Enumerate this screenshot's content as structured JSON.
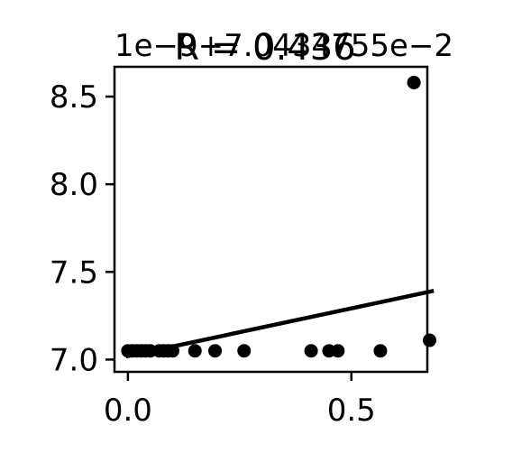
{
  "chart_data": {
    "type": "scatter",
    "title": "R = 0.436",
    "offset_text": "1e−9+7.0434755e−2",
    "xlabel": "",
    "ylabel": "",
    "xlim": [
      -0.03,
      0.67
    ],
    "ylim": [
      6.93,
      8.67
    ],
    "xticks": [
      0.0,
      0.5
    ],
    "xtick_labels": [
      "0.0",
      "0.5"
    ],
    "yticks": [
      7.0,
      7.5,
      8.0,
      8.5
    ],
    "ytick_labels": [
      "7.0",
      "7.5",
      "8.0",
      "8.5"
    ],
    "grid": false,
    "series": [
      {
        "points": [
          {
            "x": 0.0,
            "y": 7.05
          },
          {
            "x": 0.01,
            "y": 7.05
          },
          {
            "x": 0.02,
            "y": 7.05
          },
          {
            "x": 0.03,
            "y": 7.05
          },
          {
            "x": 0.04,
            "y": 7.05
          },
          {
            "x": 0.05,
            "y": 7.05
          },
          {
            "x": 0.07,
            "y": 7.05
          },
          {
            "x": 0.08,
            "y": 7.05
          },
          {
            "x": 0.09,
            "y": 7.05
          },
          {
            "x": 0.1,
            "y": 7.05
          },
          {
            "x": 0.15,
            "y": 7.05
          },
          {
            "x": 0.195,
            "y": 7.05
          },
          {
            "x": 0.26,
            "y": 7.05
          },
          {
            "x": 0.41,
            "y": 7.05
          },
          {
            "x": 0.45,
            "y": 7.05
          },
          {
            "x": 0.47,
            "y": 7.05
          },
          {
            "x": 0.565,
            "y": 7.05
          },
          {
            "x": 0.64,
            "y": 8.58
          },
          {
            "x": 0.675,
            "y": 7.11
          }
        ]
      }
    ],
    "fit_line": {
      "x": [
        0.0,
        0.68
      ],
      "y": [
        7.02,
        7.39
      ]
    },
    "colors": {
      "points": "#000000",
      "line": "#000000",
      "axes": "#000000"
    }
  }
}
